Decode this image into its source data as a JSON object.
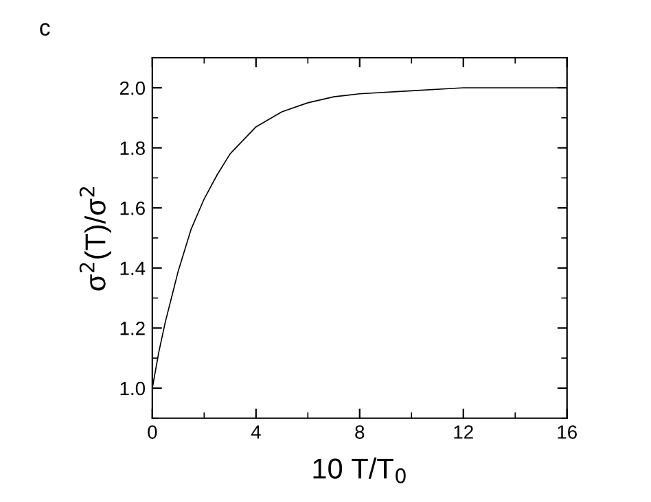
{
  "chart_data": {
    "type": "line",
    "xlabel": "10 T/T$_{0}$",
    "ylabel": "σ$^{2}$(T)/σ$^{2}$",
    "annotations": [
      "c"
    ],
    "x": [
      0,
      0.25,
      0.5,
      1,
      1.5,
      2,
      2.5,
      3,
      4,
      5,
      6,
      7,
      8,
      10,
      12,
      14,
      15.7
    ],
    "series": [
      {
        "color": "#000000",
        "values": [
          1.0,
          1.12,
          1.22,
          1.39,
          1.53,
          1.63,
          1.71,
          1.78,
          1.87,
          1.92,
          1.95,
          1.97,
          1.98,
          1.99,
          2.0,
          2.0,
          2.0
        ]
      }
    ],
    "xlim": [
      0,
      16
    ],
    "ylim": [
      0.9,
      2.1
    ],
    "xticks": [
      0,
      {
        "value": 2,
        "label": null
      },
      4,
      {
        "value": 6,
        "label": null
      },
      8,
      {
        "value": 10,
        "label": null
      },
      12,
      {
        "value": 14,
        "label": null
      },
      16
    ],
    "yticks": [
      {
        "value": 0.9,
        "label": null
      },
      {
        "value": 1.0,
        "label": "1.0"
      },
      {
        "value": 1.1,
        "label": null
      },
      {
        "value": 1.2,
        "label": "1.2"
      },
      {
        "value": 1.3,
        "label": null
      },
      {
        "value": 1.4,
        "label": "1.4"
      },
      {
        "value": 1.5,
        "label": null
      },
      {
        "value": 1.6,
        "label": "1.6"
      },
      {
        "value": 1.7,
        "label": null
      },
      {
        "value": 1.8,
        "label": "1.8"
      },
      {
        "value": 1.9,
        "label": null
      },
      {
        "value": 2.0,
        "label": "2.0"
      },
      {
        "value": 2.1,
        "label": null
      }
    ],
    "grid": false,
    "marker": "none",
    "line_style": "solid"
  }
}
